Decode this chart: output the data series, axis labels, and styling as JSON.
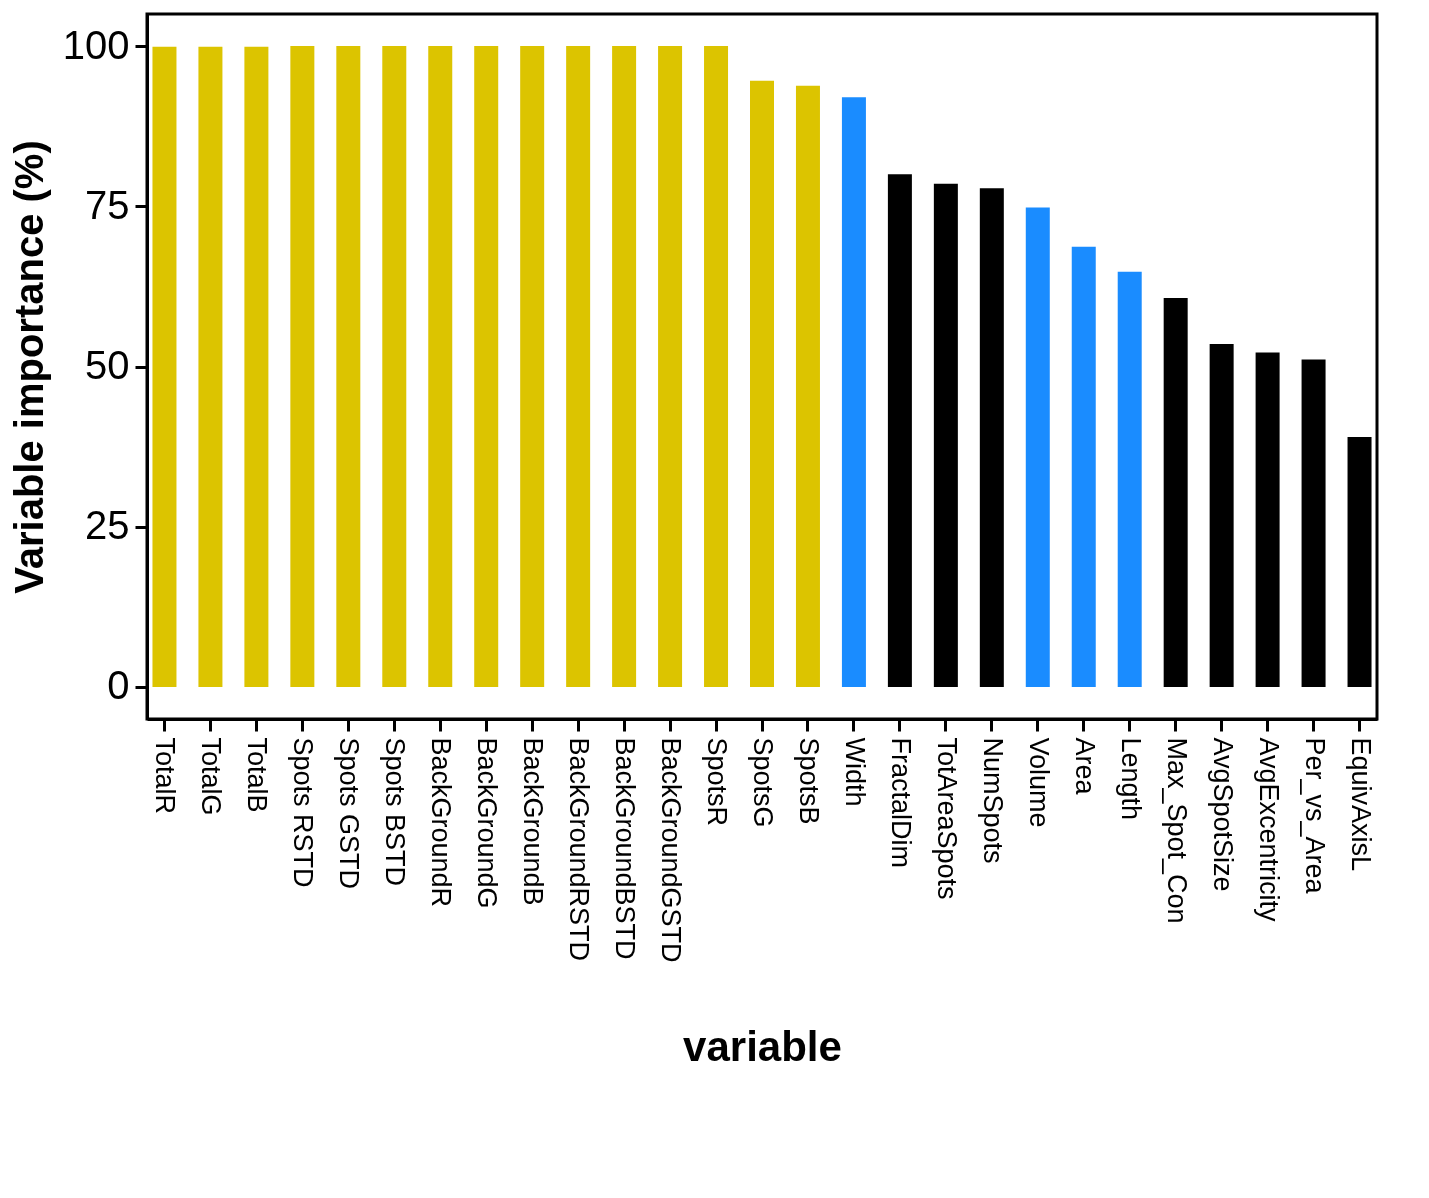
{
  "chart_data": {
    "type": "bar",
    "xlabel": "variable",
    "ylabel": "Variable importance (%)",
    "categories": [
      "TotalR",
      "TotalG",
      "TotalB",
      "Spots RSTD",
      "Spots GSTD",
      "Spots BSTD",
      "BackGroundR",
      "BackGroundG",
      "BackGroundB",
      "BackGroundRSTD",
      "BackGroundBSTD",
      "BackGroundGSTD",
      "SpotsR",
      "SpotsG",
      "SpotsB",
      "Width",
      "FractalDim",
      "TotAreaSpots",
      "NumSpots",
      "Volume",
      "Area",
      "Length",
      "Max_Spot_Con",
      "AvgSpotSize",
      "AvgExcentricity",
      "Per_vs_Area",
      "EquivAxisL"
    ],
    "values": [
      99.9,
      99.9,
      99.9,
      100,
      100,
      100,
      100,
      100,
      100,
      100,
      100,
      100,
      100,
      94.6,
      93.8,
      92.0,
      80.0,
      78.5,
      77.8,
      74.8,
      68.7,
      64.8,
      60.7,
      53.5,
      52.2,
      51.1,
      39.0
    ],
    "colors": [
      "#dcc400",
      "#dcc400",
      "#dcc400",
      "#dcc400",
      "#dcc400",
      "#dcc400",
      "#dcc400",
      "#dcc400",
      "#dcc400",
      "#dcc400",
      "#dcc400",
      "#dcc400",
      "#dcc400",
      "#dcc400",
      "#dcc400",
      "#1a8cff",
      "#000000",
      "#000000",
      "#000000",
      "#1a8cff",
      "#1a8cff",
      "#1a8cff",
      "#000000",
      "#000000",
      "#000000",
      "#000000",
      "#000000"
    ],
    "ylim": [
      -5,
      105
    ],
    "yticks": [
      0,
      25,
      50,
      75,
      100
    ],
    "grid": false
  }
}
